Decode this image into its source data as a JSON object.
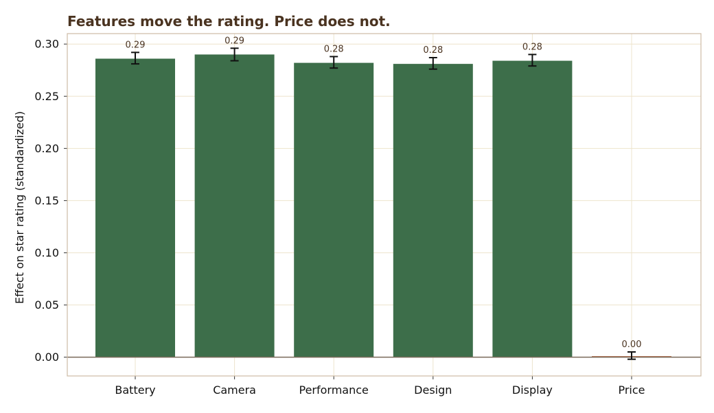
{
  "chart_data": {
    "type": "bar",
    "title": "Features move the rating. Price does not.",
    "xlabel": "",
    "ylabel": "Effect on star rating (standardized)",
    "categories": [
      "Battery",
      "Camera",
      "Performance",
      "Design",
      "Display",
      "Price"
    ],
    "values": [
      0.286,
      0.29,
      0.282,
      0.281,
      0.284,
      0.001
    ],
    "error_low": [
      0.281,
      0.284,
      0.277,
      0.276,
      0.279,
      -0.002
    ],
    "error_high": [
      0.292,
      0.296,
      0.288,
      0.287,
      0.29,
      0.005
    ],
    "data_labels": [
      "0.29",
      "0.29",
      "0.28",
      "0.28",
      "0.28",
      "0.00"
    ],
    "bar_colors": [
      "#3d6e4a",
      "#3d6e4a",
      "#3d6e4a",
      "#3d6e4a",
      "#3d6e4a",
      "#b56a48"
    ],
    "ylim": [
      -0.018,
      0.31
    ],
    "yticks": [
      0.0,
      0.05,
      0.1,
      0.15,
      0.2,
      0.25,
      0.3
    ],
    "ytick_labels": [
      "0.00",
      "0.05",
      "0.10",
      "0.15",
      "0.20",
      "0.25",
      "0.30"
    ],
    "grid": true,
    "legend": "none",
    "colors": {
      "title": "#4a3320",
      "grid": "#ede4cc",
      "frame": "#cdbba5",
      "zero_line": "#7a6a5a",
      "data_label": "#4a3320",
      "error_bar": "#111111"
    }
  }
}
